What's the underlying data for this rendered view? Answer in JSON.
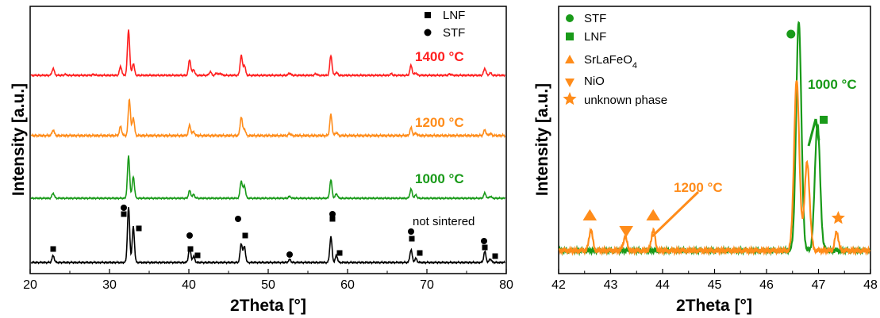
{
  "chart_data": [
    {
      "type": "line",
      "xlabel": "2Theta [°]",
      "ylabel": "Intensity [a.u.]",
      "xlim": [
        20,
        80
      ],
      "xticks": [
        "20",
        "30",
        "40",
        "50",
        "60",
        "70",
        "80"
      ],
      "legend": {
        "placement": "top-right",
        "entries": [
          {
            "symbol": "square",
            "label": "LNF",
            "color": "#000000"
          },
          {
            "symbol": "circle",
            "label": "STF",
            "color": "#000000"
          }
        ]
      },
      "series": [
        {
          "name": "1400 °C",
          "color": "#ff1f1f",
          "peaks": [
            [
              22.9,
              0.35
            ],
            [
              24.4,
              0.05
            ],
            [
              28.0,
              0.05
            ],
            [
              31.4,
              0.45
            ],
            [
              32.4,
              2.3
            ],
            [
              33.0,
              0.6
            ],
            [
              40.1,
              0.8
            ],
            [
              40.6,
              0.3
            ],
            [
              42.7,
              0.18
            ],
            [
              43.5,
              0.12
            ],
            [
              44.0,
              0.1
            ],
            [
              46.6,
              1.0
            ],
            [
              47.0,
              0.5
            ],
            [
              52.7,
              0.12
            ],
            [
              56.0,
              0.08
            ],
            [
              57.9,
              1.0
            ],
            [
              58.6,
              0.15
            ],
            [
              65.5,
              0.08
            ],
            [
              68.0,
              0.5
            ],
            [
              68.6,
              0.12
            ],
            [
              72.9,
              0.07
            ],
            [
              77.3,
              0.35
            ],
            [
              78.0,
              0.12
            ]
          ]
        },
        {
          "name": "1200 °C",
          "color": "#ff8c1a",
          "peaks": [
            [
              22.9,
              0.22
            ],
            [
              31.4,
              0.35
            ],
            [
              32.5,
              1.4
            ],
            [
              33.0,
              0.7
            ],
            [
              40.1,
              0.4
            ],
            [
              40.6,
              0.15
            ],
            [
              46.6,
              0.72
            ],
            [
              47.0,
              0.25
            ],
            [
              52.7,
              0.08
            ],
            [
              57.9,
              0.8
            ],
            [
              58.6,
              0.12
            ],
            [
              68.0,
              0.3
            ],
            [
              68.6,
              0.1
            ],
            [
              77.3,
              0.22
            ],
            [
              78.0,
              0.08
            ]
          ]
        },
        {
          "name": "1000 °C",
          "color": "#199a19",
          "peaks": [
            [
              22.9,
              0.28
            ],
            [
              32.4,
              2.3
            ],
            [
              33.0,
              1.2
            ],
            [
              40.1,
              0.42
            ],
            [
              40.6,
              0.2
            ],
            [
              46.6,
              0.95
            ],
            [
              47.0,
              0.7
            ],
            [
              52.7,
              0.1
            ],
            [
              57.9,
              1.0
            ],
            [
              58.6,
              0.25
            ],
            [
              68.0,
              0.5
            ],
            [
              68.6,
              0.18
            ],
            [
              77.3,
              0.28
            ],
            [
              78.0,
              0.1
            ]
          ]
        },
        {
          "name": "not sintered",
          "color": "#000000",
          "peaks": [
            [
              22.9,
              0.35
            ],
            [
              32.4,
              2.8
            ],
            [
              33.0,
              1.8
            ],
            [
              40.1,
              0.75
            ],
            [
              40.6,
              0.3
            ],
            [
              46.6,
              0.95
            ],
            [
              47.0,
              0.8
            ],
            [
              52.7,
              0.15
            ],
            [
              57.9,
              1.3
            ],
            [
              58.6,
              0.35
            ],
            [
              68.0,
              0.65
            ],
            [
              68.6,
              0.2
            ],
            [
              77.3,
              0.55
            ],
            [
              78.0,
              0.18
            ]
          ]
        }
      ],
      "markers": [
        {
          "symbol": "square",
          "x": 22.9
        },
        {
          "symbol": "circle",
          "x": 31.8
        },
        {
          "symbol": "square",
          "x": 31.8
        },
        {
          "symbol": "square",
          "x": 33.7
        },
        {
          "symbol": "circle",
          "x": 40.1
        },
        {
          "symbol": "square",
          "x": 40.2
        },
        {
          "symbol": "square",
          "x": 41.1
        },
        {
          "symbol": "circle",
          "x": 46.2
        },
        {
          "symbol": "square",
          "x": 47.1
        },
        {
          "symbol": "circle",
          "x": 52.7
        },
        {
          "symbol": "circle",
          "x": 58.1
        },
        {
          "symbol": "square",
          "x": 58.1
        },
        {
          "symbol": "square",
          "x": 59.0
        },
        {
          "symbol": "circle",
          "x": 68.0
        },
        {
          "symbol": "square",
          "x": 68.1
        },
        {
          "symbol": "square",
          "x": 69.1
        },
        {
          "symbol": "circle",
          "x": 77.2
        },
        {
          "symbol": "square",
          "x": 77.3
        },
        {
          "symbol": "square",
          "x": 78.6
        }
      ]
    },
    {
      "type": "line",
      "xlabel": "2Theta [°]",
      "ylabel": "Intensity [a.u.]",
      "xlim": [
        42,
        48
      ],
      "xticks": [
        "42",
        "43",
        "44",
        "45",
        "46",
        "47",
        "48"
      ],
      "legend": {
        "placement": "top-left",
        "entries": [
          {
            "symbol": "circle",
            "label": "STF",
            "color": "#199a19"
          },
          {
            "symbol": "square",
            "label": "LNF",
            "color": "#199a19"
          },
          {
            "symbol": "triangle-up",
            "label": "SrLaFeO",
            "sub": "4",
            "color": "#ff8c1a"
          },
          {
            "symbol": "triangle-down",
            "label": "NiO",
            "color": "#ff8c1a"
          },
          {
            "symbol": "star",
            "label": "unknown phase",
            "color": "#ff8c1a"
          }
        ]
      },
      "series": [
        {
          "name": "1000 °C",
          "color": "#199a19",
          "peaks": [
            [
              46.62,
              1.0
            ],
            [
              46.98,
              0.55
            ]
          ]
        },
        {
          "name": "1200 °C",
          "color": "#ff8c1a",
          "peaks": [
            [
              42.62,
              0.09
            ],
            [
              43.28,
              0.06
            ],
            [
              43.82,
              0.09
            ],
            [
              46.58,
              0.74
            ],
            [
              46.78,
              0.38
            ],
            [
              47.35,
              0.08
            ]
          ]
        }
      ],
      "markers": [
        {
          "symbol": "circle",
          "x": 46.47,
          "color": "#199a19"
        },
        {
          "symbol": "square",
          "x": 47.1,
          "color": "#199a19"
        },
        {
          "symbol": "triangle-up",
          "x": 42.6,
          "color": "#ff8c1a"
        },
        {
          "symbol": "triangle-down",
          "x": 43.3,
          "color": "#ff8c1a"
        },
        {
          "symbol": "triangle-up",
          "x": 43.82,
          "color": "#ff8c1a"
        },
        {
          "symbol": "star",
          "x": 47.38,
          "color": "#ff8c1a"
        }
      ]
    }
  ]
}
